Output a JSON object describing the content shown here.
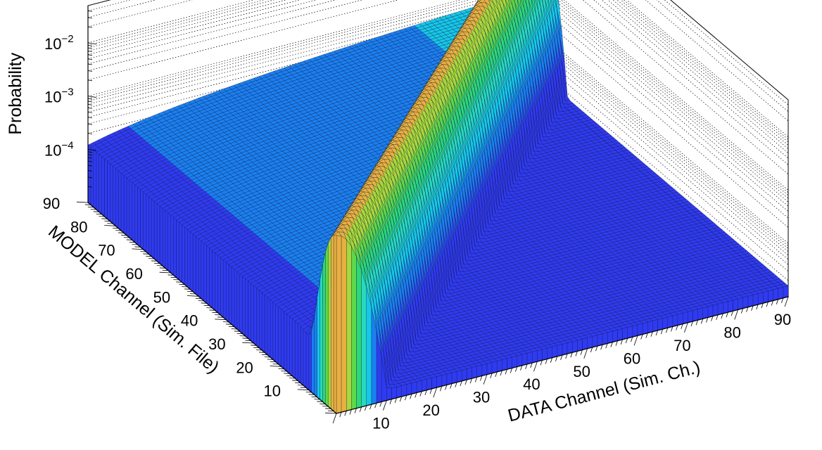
{
  "chart_data": {
    "type": "surface",
    "title": "",
    "xlabel": "DATA Channel (Sim. Ch.)",
    "ylabel": "MODEL Channel (Sim. File)",
    "zlabel": "Probability",
    "x_ticks": [
      "10",
      "20",
      "30",
      "40",
      "50",
      "60",
      "70",
      "80",
      "90"
    ],
    "y_ticks": [
      "10",
      "20",
      "30",
      "40",
      "50",
      "60",
      "70",
      "80",
      "90"
    ],
    "z_ticks": [
      {
        "base": "10",
        "exp": "−4"
      },
      {
        "base": "10",
        "exp": "−3"
      },
      {
        "base": "10",
        "exp": "−2"
      }
    ],
    "xlim": [
      0,
      90
    ],
    "ylim": [
      0,
      90
    ],
    "zlim": [
      1e-05,
      0.05
    ],
    "z_scale": "log",
    "grid": true,
    "palette": [
      "#3b0fd0",
      "#2f3bf0",
      "#1a80f0",
      "#16c8e8",
      "#27d9c0",
      "#2bd87a",
      "#5fd84a",
      "#a8d83a",
      "#e8b040",
      "#f05a40"
    ],
    "surface_features": {
      "ridge": "sharp peak along the diagonal DATA Channel = MODEL Channel, reaching ~2×10⁻²",
      "upper_region": "MODEL > DATA plateau near 10⁻⁴ to 10⁻³",
      "lower_region": "MODEL < DATA flat near the floor"
    }
  }
}
